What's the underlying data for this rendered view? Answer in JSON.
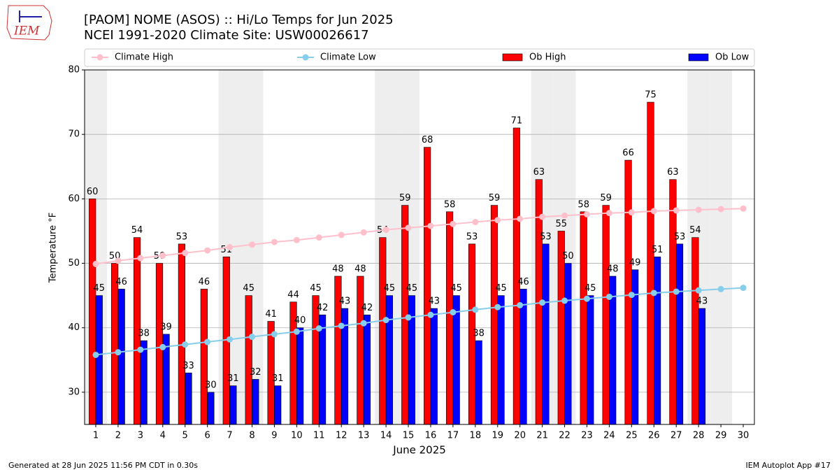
{
  "chart_data": {
    "type": "bar",
    "title": "[PAOM] NOME (ASOS) :: Hi/Lo Temps for Jun 2025",
    "subtitle": "NCEI 1991-2020 Climate Site: USW00026617",
    "xlabel": "June 2025",
    "ylabel": "Temperature °F",
    "x": [
      1,
      2,
      3,
      4,
      5,
      6,
      7,
      8,
      9,
      10,
      11,
      12,
      13,
      14,
      15,
      16,
      17,
      18,
      19,
      20,
      21,
      22,
      23,
      24,
      25,
      26,
      27,
      28,
      29,
      30
    ],
    "xlim": [
      0.5,
      30.5
    ],
    "ylim": [
      25,
      80
    ],
    "yticks": [
      30,
      40,
      50,
      60,
      70,
      80
    ],
    "grid": true,
    "highlight_days": [
      1,
      7,
      8,
      14,
      15,
      21,
      22,
      28,
      29
    ],
    "highlight_color": "#eeeeee",
    "series": [
      {
        "name": "Climate High",
        "kind": "line",
        "color": "#ffc0cb",
        "values": [
          49.9,
          50.4,
          50.8,
          51.2,
          51.6,
          52.0,
          52.5,
          52.9,
          53.3,
          53.6,
          54.0,
          54.4,
          54.8,
          55.2,
          55.5,
          55.8,
          56.1,
          56.4,
          56.7,
          56.9,
          57.2,
          57.4,
          57.6,
          57.8,
          57.9,
          58.1,
          58.2,
          58.3,
          58.4,
          58.5
        ]
      },
      {
        "name": "Climate Low",
        "kind": "line",
        "color": "#87ceeb",
        "values": [
          35.8,
          36.2,
          36.6,
          37.0,
          37.4,
          37.8,
          38.2,
          38.6,
          39.0,
          39.4,
          39.9,
          40.3,
          40.7,
          41.2,
          41.6,
          42.0,
          42.4,
          42.8,
          43.2,
          43.5,
          43.9,
          44.2,
          44.5,
          44.8,
          45.1,
          45.4,
          45.6,
          45.8,
          46.0,
          46.2
        ]
      },
      {
        "name": "Ob High",
        "kind": "bar",
        "color": "#ff0000",
        "values": [
          60,
          50,
          54,
          50,
          53,
          46,
          51,
          45,
          41,
          44,
          45,
          48,
          48,
          54,
          59,
          68,
          58,
          53,
          59,
          71,
          63,
          55,
          58,
          59,
          66,
          75,
          63,
          54,
          null,
          null
        ]
      },
      {
        "name": "Ob Low",
        "kind": "bar",
        "color": "#0000ff",
        "values": [
          45,
          46,
          38,
          39,
          33,
          30,
          31,
          32,
          31,
          40,
          42,
          43,
          42,
          45,
          45,
          43,
          45,
          38,
          45,
          46,
          53,
          50,
          45,
          48,
          49,
          51,
          53,
          43,
          null,
          null
        ]
      }
    ],
    "logo_text": "IEM",
    "footer_left": "Generated at 28 Jun 2025 11:56 PM CDT in 0.30s",
    "footer_right": "IEM Autoplot App #17"
  }
}
